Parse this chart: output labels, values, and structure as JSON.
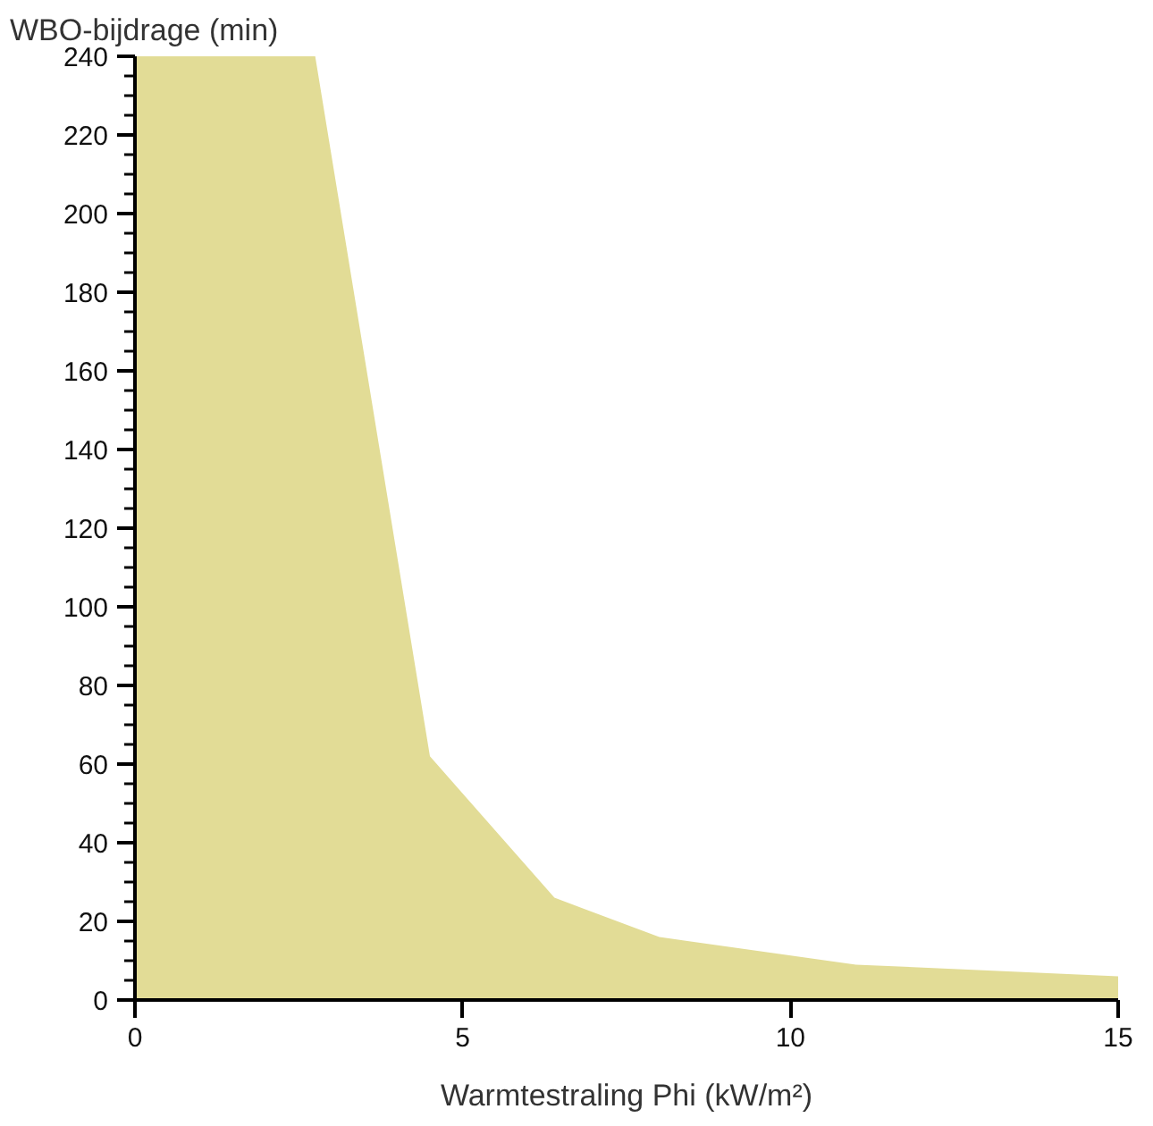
{
  "chart_data": {
    "type": "area",
    "xlabel": "Warmtestraling Phi (kW/m²)",
    "ylabel": "WBO-bijdrage (min)",
    "x": [
      0,
      2.75,
      4.5,
      6.4,
      8,
      11,
      15
    ],
    "series": [
      {
        "color": "#e2dc96",
        "values": [
          240,
          240,
          62,
          26,
          16,
          9,
          6
        ]
      }
    ],
    "xlim": [
      0,
      15
    ],
    "ylim": [
      0,
      240
    ],
    "xticks": [
      0,
      5,
      10,
      15
    ],
    "yticks": [
      0,
      {
        "value": 5,
        "label": null
      },
      {
        "value": 10,
        "label": null
      },
      {
        "value": 15,
        "label": null
      },
      20,
      {
        "value": 25,
        "label": null
      },
      {
        "value": 30,
        "label": null
      },
      {
        "value": 35,
        "label": null
      },
      40,
      {
        "value": 45,
        "label": null
      },
      {
        "value": 50,
        "label": null
      },
      {
        "value": 55,
        "label": null
      },
      60,
      {
        "value": 65,
        "label": null
      },
      {
        "value": 70,
        "label": null
      },
      {
        "value": 75,
        "label": null
      },
      80,
      {
        "value": 85,
        "label": null
      },
      {
        "value": 90,
        "label": null
      },
      {
        "value": 95,
        "label": null
      },
      100,
      {
        "value": 105,
        "label": null
      },
      {
        "value": 110,
        "label": null
      },
      {
        "value": 115,
        "label": null
      },
      120,
      {
        "value": 125,
        "label": null
      },
      {
        "value": 130,
        "label": null
      },
      {
        "value": 135,
        "label": null
      },
      140,
      {
        "value": 145,
        "label": null
      },
      {
        "value": 150,
        "label": null
      },
      {
        "value": 155,
        "label": null
      },
      160,
      {
        "value": 165,
        "label": null
      },
      {
        "value": 170,
        "label": null
      },
      {
        "value": 175,
        "label": null
      },
      180,
      {
        "value": 185,
        "label": null
      },
      {
        "value": 190,
        "label": null
      },
      {
        "value": 195,
        "label": null
      },
      200,
      {
        "value": 205,
        "label": null
      },
      {
        "value": 210,
        "label": null
      },
      {
        "value": 215,
        "label": null
      },
      220,
      {
        "value": 225,
        "label": null
      },
      {
        "value": 230,
        "label": null
      },
      {
        "value": 235,
        "label": null
      },
      240
    ],
    "grid": false
  }
}
